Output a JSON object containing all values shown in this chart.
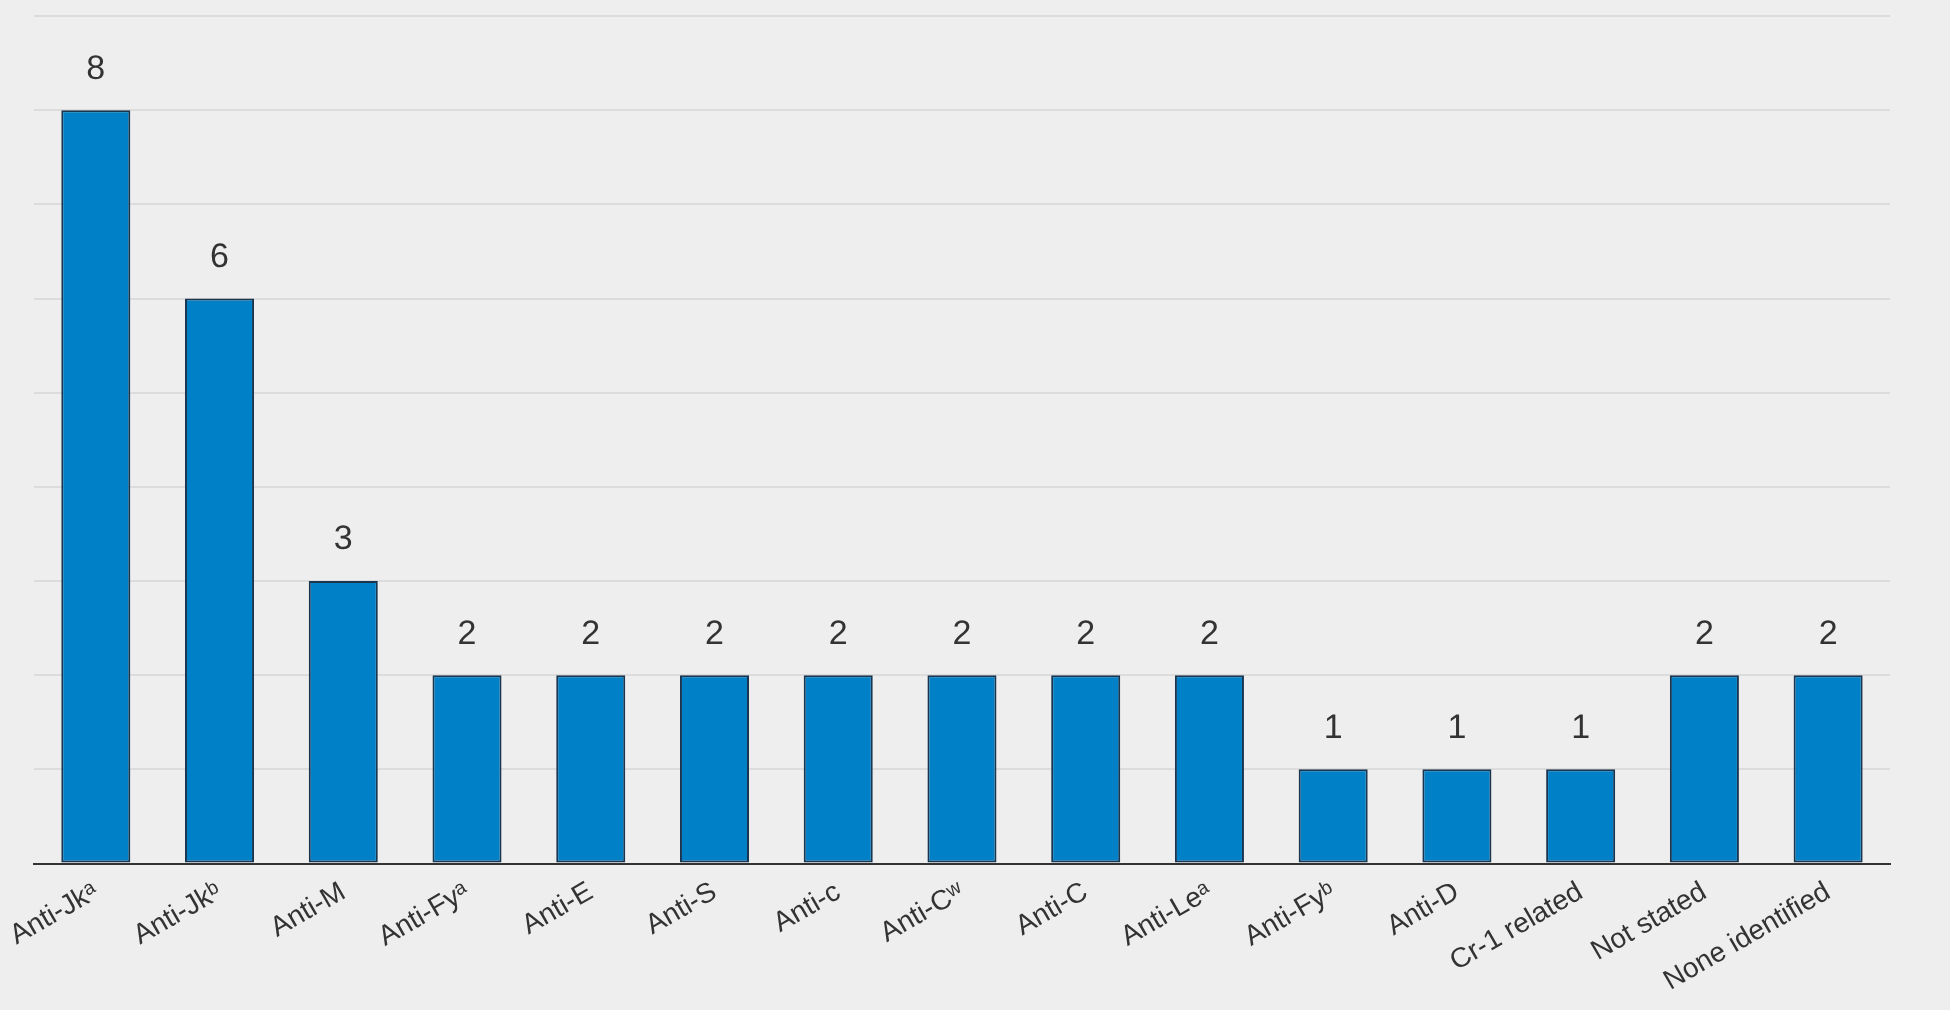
{
  "chart_data": {
    "type": "bar",
    "categories": [
      "Anti-Jkᵃ",
      "Anti-Jkᵇ",
      "Anti-M",
      "Anti-Fyᵃ",
      "Anti-E",
      "Anti-S",
      "Anti-c",
      "Anti-Cʷ",
      "Anti-C",
      "Anti-Leᵃ",
      "Anti-Fyᵇ",
      "Anti-D",
      "Cr-1 related",
      "Not stated",
      "None identified"
    ],
    "values": [
      8,
      6,
      3,
      2,
      2,
      2,
      2,
      2,
      2,
      2,
      1,
      1,
      1,
      2,
      2
    ],
    "color": "#0080c6",
    "ylim": [
      0,
      9
    ],
    "yticks": [
      {
        "value": 0,
        "label": null
      },
      {
        "value": 1,
        "label": null
      },
      {
        "value": 2,
        "label": null
      },
      {
        "value": 3,
        "label": null
      },
      {
        "value": 4,
        "label": null
      },
      {
        "value": 5,
        "label": null
      },
      {
        "value": 6,
        "label": null
      },
      {
        "value": 7,
        "label": null
      },
      {
        "value": 8,
        "label": null
      },
      {
        "value": 9,
        "label": null
      }
    ],
    "grid": "y",
    "tick_labels": "x",
    "data_labels": true,
    "legend": false
  }
}
